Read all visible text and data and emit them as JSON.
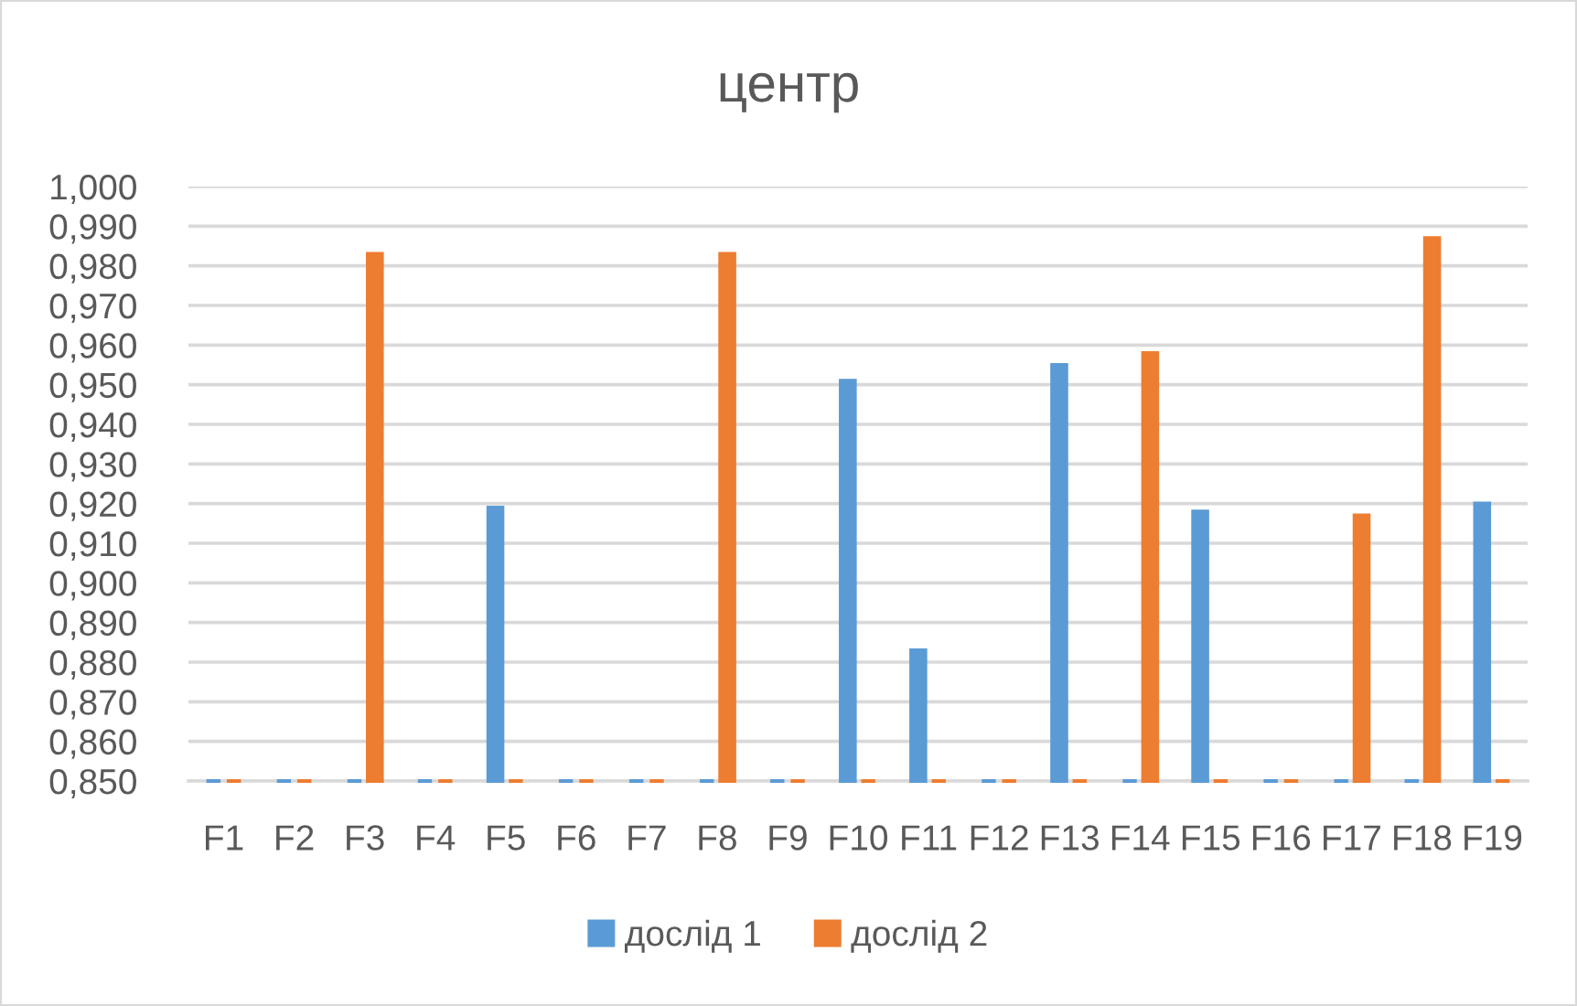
{
  "chart_data": {
    "type": "bar",
    "title": "центр",
    "categories": [
      "F1",
      "F2",
      "F3",
      "F4",
      "F5",
      "F6",
      "F7",
      "F8",
      "F9",
      "F10",
      "F11",
      "F12",
      "F13",
      "F14",
      "F15",
      "F16",
      "F17",
      "F18",
      "F19"
    ],
    "series": [
      {
        "name": "дослід 1",
        "color": "#5b9bd5",
        "values": [
          0.85,
          0.85,
          0.85,
          0.85,
          0.919,
          0.85,
          0.85,
          0.85,
          0.85,
          0.951,
          0.883,
          0.85,
          0.955,
          0.85,
          0.918,
          0.85,
          0.85,
          0.85,
          0.92
        ]
      },
      {
        "name": "дослід 2",
        "color": "#ed7d31",
        "values": [
          0.85,
          0.85,
          0.983,
          0.85,
          0.85,
          0.85,
          0.85,
          0.983,
          0.85,
          0.85,
          0.85,
          0.85,
          0.85,
          0.958,
          0.85,
          0.85,
          0.917,
          0.987,
          0.85
        ]
      }
    ],
    "ylim": [
      0.85,
      1.0
    ],
    "yticks": [
      {
        "value": 0.85,
        "label": "0,850"
      },
      {
        "value": 0.86,
        "label": "0,860"
      },
      {
        "value": 0.87,
        "label": "0,870"
      },
      {
        "value": 0.88,
        "label": "0,880"
      },
      {
        "value": 0.89,
        "label": "0,890"
      },
      {
        "value": 0.9,
        "label": "0,900"
      },
      {
        "value": 0.91,
        "label": "0,910"
      },
      {
        "value": 0.92,
        "label": "0,920"
      },
      {
        "value": 0.93,
        "label": "0,930"
      },
      {
        "value": 0.94,
        "label": "0,940"
      },
      {
        "value": 0.95,
        "label": "0,950"
      },
      {
        "value": 0.96,
        "label": "0,960"
      },
      {
        "value": 0.97,
        "label": "0,970"
      },
      {
        "value": 0.98,
        "label": "0,980"
      },
      {
        "value": 0.99,
        "label": "0,990"
      },
      {
        "value": 1.0,
        "label": "1,000"
      }
    ],
    "grid": "y",
    "legend": "bottom"
  }
}
